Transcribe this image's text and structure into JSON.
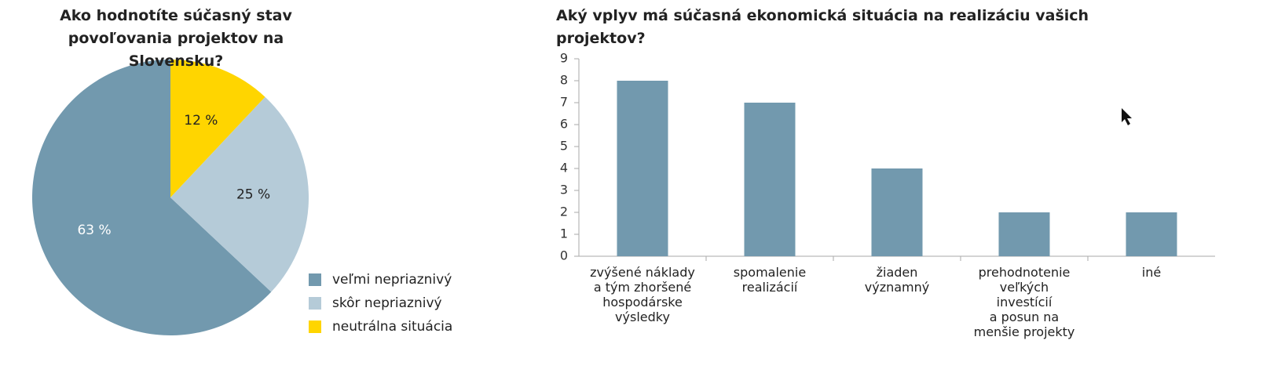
{
  "chart_data": [
    {
      "type": "pie",
      "title": "Ako hodnotíte súčasný stav povoľovania projektov na Slovensku?",
      "categories": [
        "veľmi nepriaznivý",
        "skôr nepriaznivý",
        "neutrálna situácia"
      ],
      "values": [
        63,
        25,
        12
      ],
      "value_labels": [
        "63 %",
        "25 %",
        "12 %"
      ],
      "colors": [
        "#7299ae",
        "#b5cbd8",
        "#ffd500"
      ]
    },
    {
      "type": "bar",
      "title": "Aký vplyv má súčasná ekonomická situácia na realizáciu vašich projektov?",
      "categories": [
        "zvýšené náklady\na tým zhoršené\nhospodárske\nvýsledky",
        "spomalenie\nrealizácií",
        "žiaden\nvýznamný",
        "prehodnotenie\nveľkých\ninvestícií\na posun na\nmenšie projekty",
        "iné"
      ],
      "values": [
        8,
        7,
        4,
        2,
        2
      ],
      "color": "#7299ae",
      "ylim": [
        0,
        9
      ],
      "yticks": [
        0,
        1,
        2,
        3,
        4,
        5,
        6,
        7,
        8,
        9
      ]
    }
  ]
}
